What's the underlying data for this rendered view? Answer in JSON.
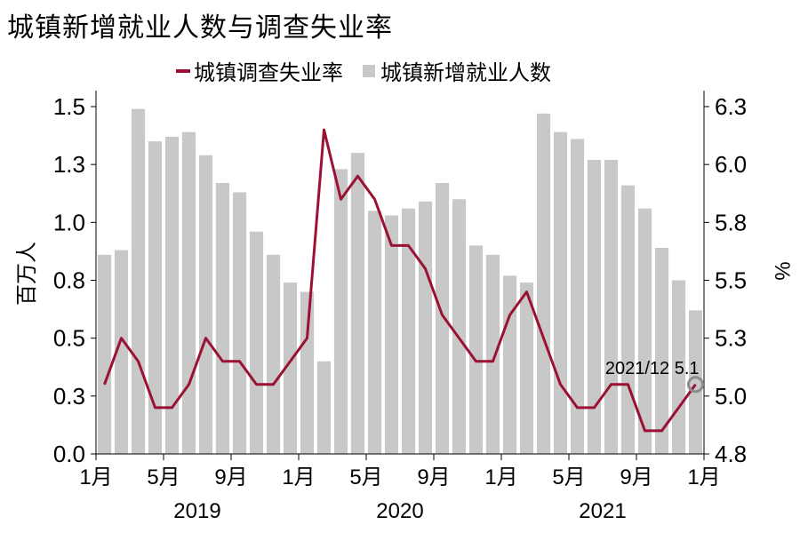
{
  "chart_data": {
    "type": "bar+line",
    "title": "城镇新增就业人数与调查失业率",
    "legend_placement": "top",
    "x_month_labels": [
      "1月",
      "5月",
      "9月",
      "1月",
      "5月",
      "9月",
      "1月",
      "5月",
      "9月",
      "1月"
    ],
    "x_year_labels": [
      "2019",
      "2020",
      "2021"
    ],
    "y_left": {
      "label": "百万人",
      "min": 0,
      "max": 1.5,
      "ticks": [
        "0.0",
        "0.3",
        "0.5",
        "0.8",
        "1.0",
        "1.3",
        "1.5"
      ]
    },
    "y_right": {
      "label": "%",
      "min": 4.8,
      "max": 6.3,
      "ticks": [
        "4.8",
        "5.0",
        "5.3",
        "5.5",
        "5.8",
        "6.0",
        "6.3"
      ]
    },
    "series": [
      {
        "name": "城镇新增就业人数",
        "kind": "bar",
        "axis": "left",
        "color": "#c8c8c8",
        "values": [
          0.86,
          0.88,
          1.49,
          1.35,
          1.37,
          1.39,
          1.29,
          1.17,
          1.13,
          0.96,
          0.86,
          0.74,
          0.7,
          0.4,
          1.23,
          1.3,
          1.05,
          1.03,
          1.06,
          1.09,
          1.17,
          1.1,
          0.9,
          0.86,
          0.77,
          0.74,
          1.47,
          1.39,
          1.36,
          1.27,
          1.27,
          1.16,
          1.06,
          0.89,
          0.75,
          0.62
        ]
      },
      {
        "name": "城镇调查失业率",
        "kind": "line",
        "axis": "right",
        "color": "#9b1134",
        "values": [
          5.1,
          5.3,
          5.2,
          5.0,
          5.0,
          5.1,
          5.3,
          5.2,
          5.2,
          5.1,
          5.1,
          5.2,
          5.3,
          6.2,
          5.9,
          6.0,
          5.9,
          5.7,
          5.7,
          5.6,
          5.4,
          5.3,
          5.2,
          5.2,
          5.4,
          5.5,
          5.3,
          5.1,
          5.0,
          5.0,
          5.1,
          5.1,
          4.9,
          4.9,
          5.0,
          5.1
        ]
      }
    ],
    "annotation": {
      "text": "2021/12 5.1",
      "month_index": 35,
      "value": 5.1
    }
  }
}
